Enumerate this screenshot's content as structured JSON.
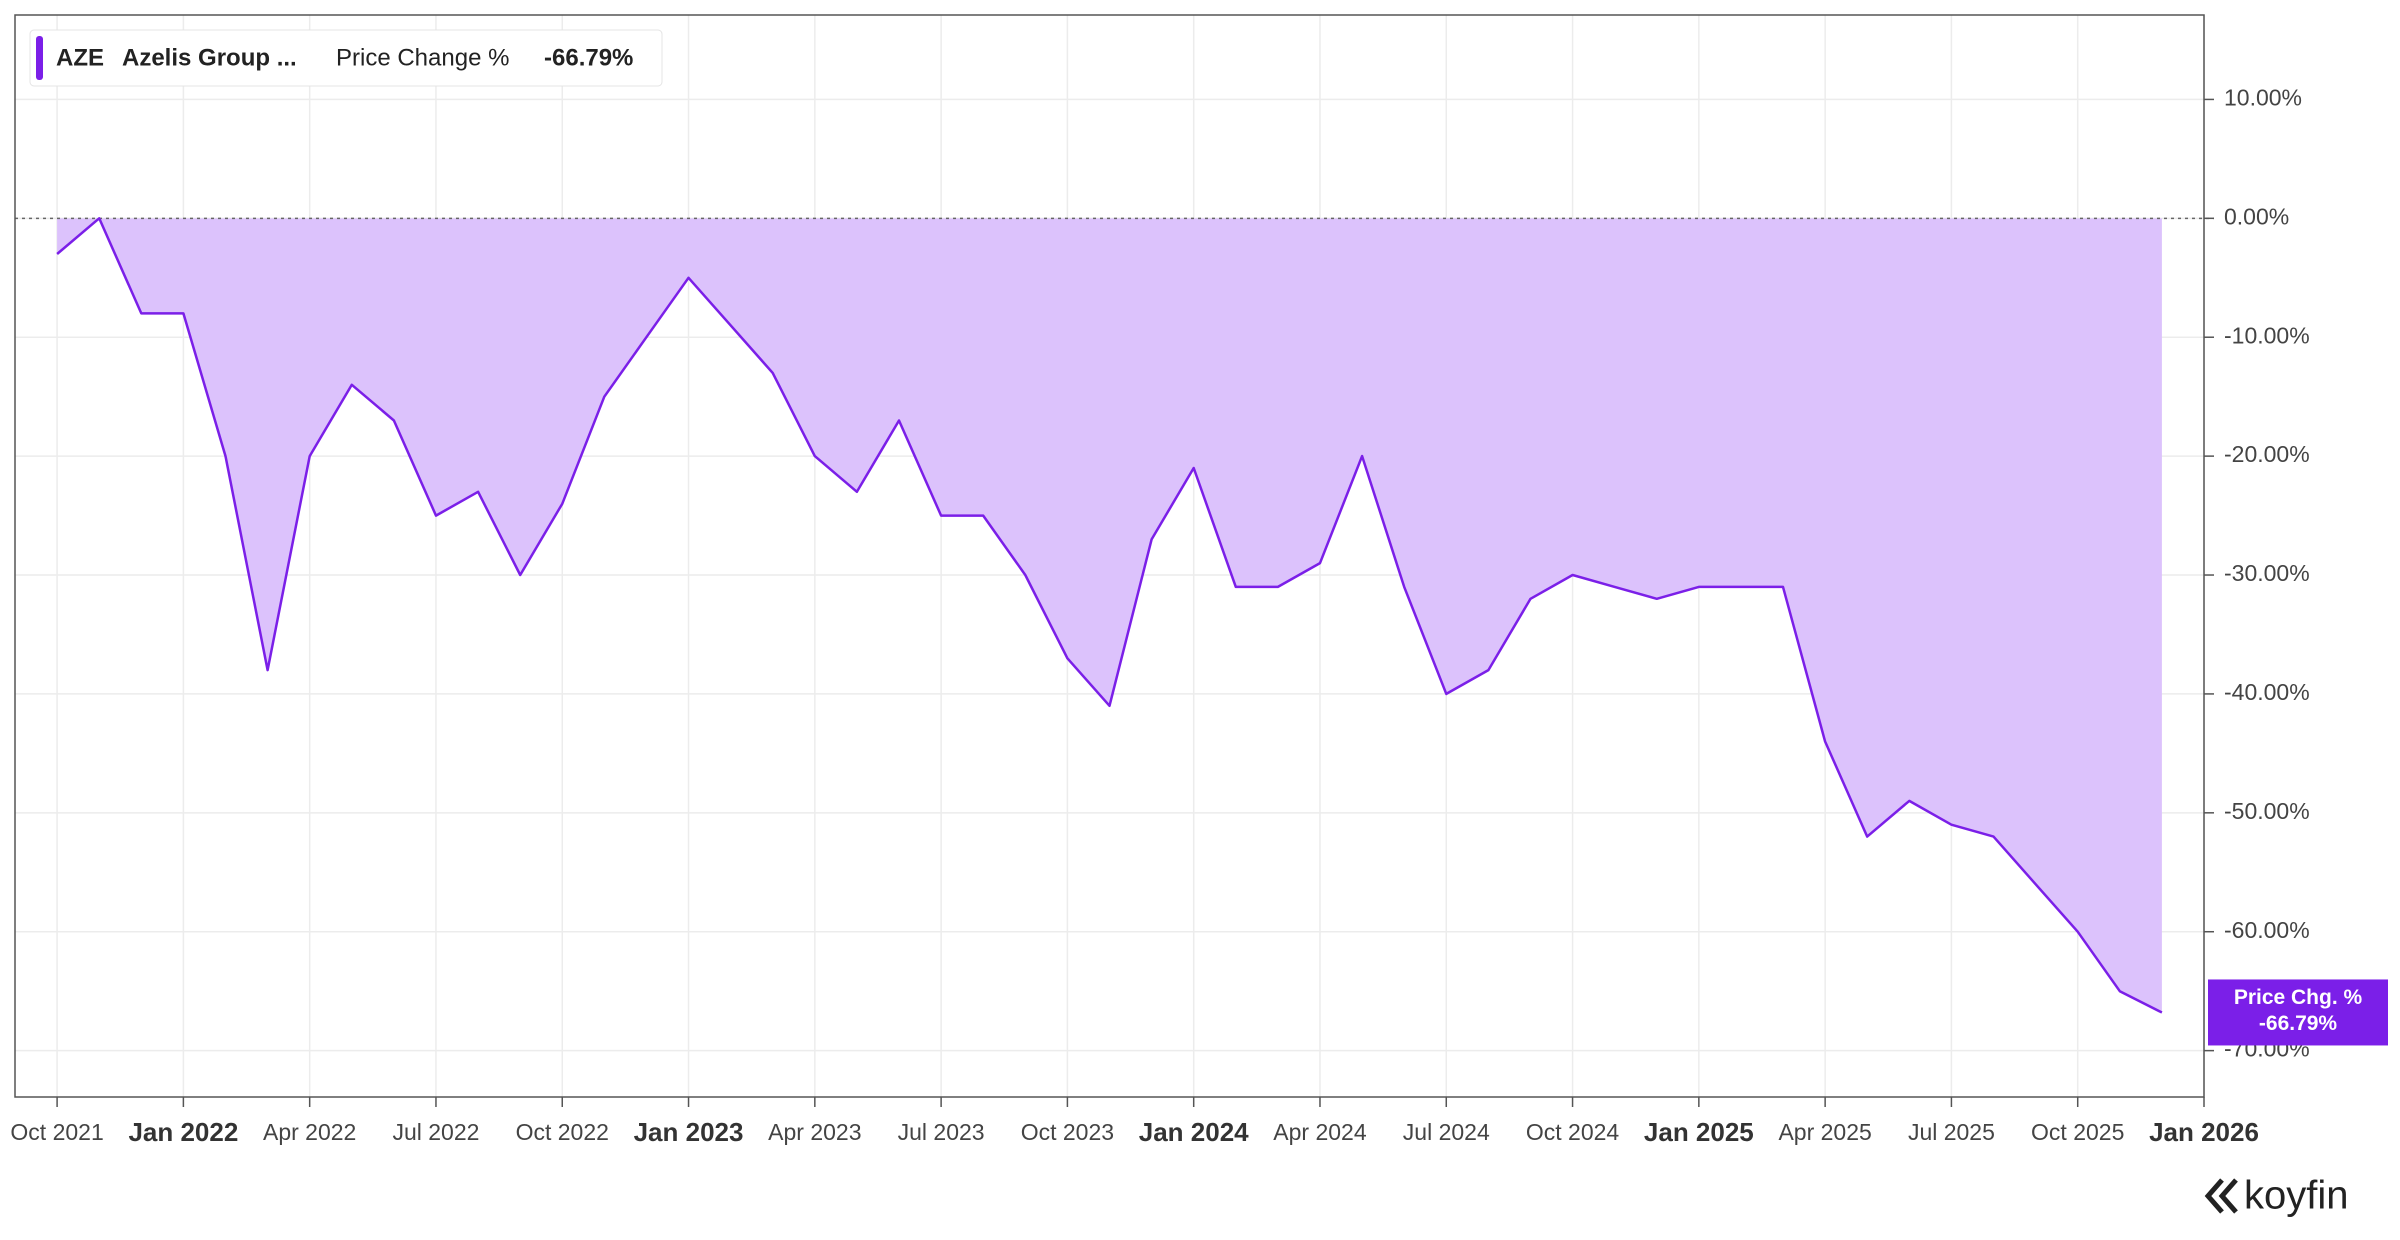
{
  "chart_data": {
    "type": "area",
    "legend": {
      "ticker": "AZE",
      "name": "Azelis Group ...",
      "metric": "Price Change %",
      "value_label": "-66.79%"
    },
    "last_label": {
      "title": "Price Chg. %",
      "value_label": "-66.79%"
    },
    "brand": "koyfin",
    "color": "#7b1fe8",
    "fill": "#dcc2fc",
    "x": [
      "Oct 2021",
      "Nov 2021",
      "Dec 2021",
      "Jan 2022",
      "Feb 2022",
      "Mar 2022",
      "Apr 2022",
      "May 2022",
      "Jun 2022",
      "Jul 2022",
      "Aug 2022",
      "Sep 2022",
      "Oct 2022",
      "Nov 2022",
      "Dec 2022",
      "Jan 2023",
      "Feb 2023",
      "Mar 2023",
      "Apr 2023",
      "May 2023",
      "Jun 2023",
      "Jul 2023",
      "Aug 2023",
      "Sep 2023",
      "Oct 2023",
      "Nov 2023",
      "Dec 2023",
      "Jan 2024",
      "Feb 2024",
      "Mar 2024",
      "Apr 2024",
      "May 2024",
      "Jun 2024",
      "Jul 2024",
      "Aug 2024",
      "Sep 2024",
      "Oct 2024",
      "Nov 2024",
      "Dec 2024",
      "Jan 2025",
      "Feb 2025",
      "Mar 2025",
      "Apr 2025",
      "May 2025",
      "Jun 2025",
      "Jul 2025",
      "Aug 2025",
      "Sep 2025",
      "Oct 2025",
      "Nov 2025",
      "Dec 2025"
    ],
    "values": [
      -3,
      0,
      -8,
      -8,
      -20,
      -38,
      -20,
      -14,
      -17,
      -25,
      -23,
      -30,
      -24,
      -15,
      -10,
      -5,
      -9,
      -13,
      -20,
      -23,
      -17,
      -25,
      -25,
      -30,
      -37,
      -41,
      -27,
      -21,
      -31,
      -31,
      -29,
      -20,
      -31,
      -40,
      -38,
      -32,
      -30,
      -31,
      -32,
      -31,
      -31,
      -31,
      -44,
      -52,
      -49,
      -51,
      -52,
      -56,
      -60,
      -65,
      -66.79
    ],
    "xlim": [
      "Sep 2021",
      "Jan 2026"
    ],
    "xticks": [
      "Oct 2021",
      "Jan 2022",
      "Apr 2022",
      "Jul 2022",
      "Oct 2022",
      "Jan 2023",
      "Apr 2023",
      "Jul 2023",
      "Oct 2023",
      "Jan 2024",
      "Apr 2024",
      "Jul 2024",
      "Oct 2024",
      "Jan 2025",
      "Apr 2025",
      "Jul 2025",
      "Oct 2025",
      "Jan 2026"
    ],
    "ylim": [
      -73.9,
      17.1
    ],
    "yticks": [
      {
        "value": 10,
        "label": "10.00%"
      },
      {
        "value": 0,
        "label": "0.00%"
      },
      {
        "value": -10,
        "label": "-10.00%"
      },
      {
        "value": -20,
        "label": "-20.00%"
      },
      {
        "value": -30,
        "label": "-30.00%"
      },
      {
        "value": -40,
        "label": "-40.00%"
      },
      {
        "value": -50,
        "label": "-50.00%"
      },
      {
        "value": -60,
        "label": "-60.00%"
      },
      {
        "value": -70,
        "label": "-70.00%"
      }
    ],
    "grid": true
  }
}
